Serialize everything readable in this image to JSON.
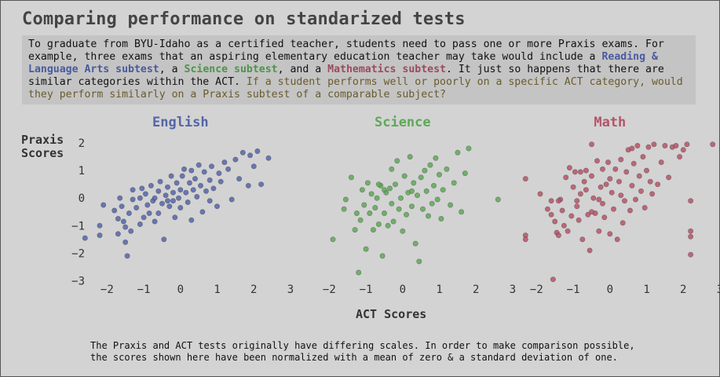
{
  "title": "Comparing performance on standarized tests",
  "intro": {
    "p1": "To graduate from BYU-Idaho as a certified teacher, students need to pass one or more Praxis exams. For example, three exams that an aspiring elementary education teacher may take would include a ",
    "reading": "Reading & Language Arts subtest",
    "p2": ", a ",
    "science": "Science subtest",
    "p3": ", and a ",
    "math": "Mathematics subtest",
    "p4": ". It just so happens that there are similar categories within the ACT. ",
    "question": "If a student performs well or poorly on a specific ACT category, would they perform similarly on a Praxis subtest of a comparable subject?"
  },
  "y_title": [
    "Praxis",
    "Scores"
  ],
  "x_title": "ACT Scores",
  "footnote": "The Praxis and ACT tests originally have differing scales. In order to make comparison possible, the scores shown here have been normalized with a mean of zero & a standard deviation of one.",
  "colors": {
    "English": "#5565a8",
    "Science": "#5ea857",
    "Math": "#b45567"
  },
  "chart_data": {
    "type": "scatter",
    "xlim": [
      -2.5,
      3
    ],
    "ylim": [
      -3.1,
      2.2
    ],
    "x_ticks": [
      -2,
      -1,
      0,
      1,
      2,
      3
    ],
    "y_ticks": [
      2,
      1,
      0,
      -1,
      -2,
      -3
    ],
    "grid": false,
    "panels": [
      {
        "name": "English",
        "points": [
          [
            -2.6,
            -1.45
          ],
          [
            -2.2,
            -1.0
          ],
          [
            -2.2,
            -1.35
          ],
          [
            -2.1,
            -0.25
          ],
          [
            -1.8,
            -0.45
          ],
          [
            -1.7,
            -0.75
          ],
          [
            -1.7,
            -1.3
          ],
          [
            -1.65,
            0.0
          ],
          [
            -1.6,
            -0.3
          ],
          [
            -1.55,
            -0.85
          ],
          [
            -1.5,
            -1.05
          ],
          [
            -1.5,
            -1.6
          ],
          [
            -1.45,
            -2.1
          ],
          [
            -1.4,
            -0.55
          ],
          [
            -1.35,
            -1.2
          ],
          [
            -1.3,
            -0.05
          ],
          [
            -1.3,
            0.3
          ],
          [
            -1.2,
            -0.35
          ],
          [
            -1.1,
            0.0
          ],
          [
            -1.1,
            -0.95
          ],
          [
            -1.05,
            0.35
          ],
          [
            -1.0,
            -0.7
          ],
          [
            -0.95,
            0.15
          ],
          [
            -0.9,
            -0.25
          ],
          [
            -0.85,
            -0.55
          ],
          [
            -0.8,
            0.45
          ],
          [
            -0.75,
            -0.1
          ],
          [
            -0.7,
            0.0
          ],
          [
            -0.7,
            -0.85
          ],
          [
            -0.6,
            -0.55
          ],
          [
            -0.6,
            0.25
          ],
          [
            -0.55,
            0.6
          ],
          [
            -0.5,
            -0.2
          ],
          [
            -0.45,
            -1.5
          ],
          [
            -0.4,
            0.1
          ],
          [
            -0.35,
            0.4
          ],
          [
            -0.3,
            -0.3
          ],
          [
            -0.25,
            0.8
          ],
          [
            -0.2,
            -0.1
          ],
          [
            -0.2,
            0.2
          ],
          [
            -0.15,
            -0.7
          ],
          [
            -0.1,
            0.55
          ],
          [
            -0.05,
            0.0
          ],
          [
            0.0,
            0.3
          ],
          [
            0.0,
            -0.35
          ],
          [
            0.05,
            0.8
          ],
          [
            0.1,
            1.05
          ],
          [
            0.15,
            0.2
          ],
          [
            0.2,
            -0.15
          ],
          [
            0.25,
            0.55
          ],
          [
            0.3,
            1.0
          ],
          [
            0.3,
            -0.8
          ],
          [
            0.35,
            0.3
          ],
          [
            0.4,
            0.7
          ],
          [
            0.45,
            0.05
          ],
          [
            0.5,
            1.2
          ],
          [
            0.55,
            0.45
          ],
          [
            0.6,
            -0.5
          ],
          [
            0.65,
            0.95
          ],
          [
            0.7,
            0.25
          ],
          [
            0.8,
            0.65
          ],
          [
            0.85,
            1.15
          ],
          [
            0.9,
            0.35
          ],
          [
            1.0,
            -0.3
          ],
          [
            1.05,
            0.9
          ],
          [
            1.1,
            0.6
          ],
          [
            1.2,
            1.3
          ],
          [
            1.3,
            1.05
          ],
          [
            1.4,
            -0.05
          ],
          [
            1.5,
            1.4
          ],
          [
            1.6,
            0.7
          ],
          [
            1.7,
            1.65
          ],
          [
            1.85,
            0.45
          ],
          [
            1.9,
            1.55
          ],
          [
            2.0,
            1.15
          ],
          [
            2.1,
            1.7
          ],
          [
            2.2,
            0.5
          ],
          [
            2.4,
            1.45
          ],
          [
            0.8,
            -0.1
          ],
          [
            -0.35,
            -0.1
          ]
        ]
      },
      {
        "name": "Science",
        "points": [
          [
            -1.9,
            -1.5
          ],
          [
            -1.6,
            -0.4
          ],
          [
            -1.55,
            -0.05
          ],
          [
            -1.4,
            0.75
          ],
          [
            -1.3,
            -1.15
          ],
          [
            -1.25,
            -0.55
          ],
          [
            -1.2,
            -2.7
          ],
          [
            -1.15,
            -0.8
          ],
          [
            -1.1,
            0.3
          ],
          [
            -1.05,
            -0.25
          ],
          [
            -1.0,
            -1.85
          ],
          [
            -0.95,
            0.55
          ],
          [
            -0.9,
            -0.55
          ],
          [
            -0.85,
            0.15
          ],
          [
            -0.8,
            -1.15
          ],
          [
            -0.75,
            -0.35
          ],
          [
            -0.7,
            0.0
          ],
          [
            -0.65,
            -0.95
          ],
          [
            -0.6,
            0.45
          ],
          [
            -0.55,
            -2.1
          ],
          [
            -0.5,
            -0.55
          ],
          [
            -0.45,
            0.2
          ],
          [
            -0.4,
            -1.0
          ],
          [
            -0.35,
            0.35
          ],
          [
            -0.3,
            -0.2
          ],
          [
            -0.3,
            1.05
          ],
          [
            -0.25,
            -0.85
          ],
          [
            -0.2,
            0.5
          ],
          [
            -0.15,
            1.35
          ],
          [
            -0.1,
            -0.4
          ],
          [
            -0.05,
            0.0
          ],
          [
            0.0,
            -1.2
          ],
          [
            0.05,
            0.8
          ],
          [
            0.1,
            -0.6
          ],
          [
            0.15,
            0.2
          ],
          [
            0.2,
            1.5
          ],
          [
            0.25,
            -0.3
          ],
          [
            0.3,
            0.55
          ],
          [
            0.35,
            -1.65
          ],
          [
            0.4,
            0.1
          ],
          [
            0.45,
            -2.3
          ],
          [
            0.5,
            0.75
          ],
          [
            0.55,
            -0.4
          ],
          [
            0.6,
            1.0
          ],
          [
            0.65,
            0.25
          ],
          [
            0.7,
            -0.65
          ],
          [
            0.75,
            1.2
          ],
          [
            0.8,
            -0.2
          ],
          [
            0.85,
            0.45
          ],
          [
            0.9,
            1.45
          ],
          [
            0.95,
            -0.05
          ],
          [
            1.0,
            0.85
          ],
          [
            1.05,
            -0.75
          ],
          [
            1.1,
            0.3
          ],
          [
            1.2,
            1.05
          ],
          [
            1.3,
            -0.25
          ],
          [
            1.4,
            0.55
          ],
          [
            1.5,
            1.65
          ],
          [
            1.6,
            -0.5
          ],
          [
            1.7,
            0.9
          ],
          [
            1.8,
            1.8
          ],
          [
            2.6,
            -0.05
          ],
          [
            -0.5,
            0.3
          ],
          [
            -0.65,
            0.5
          ],
          [
            0.25,
            0.25
          ]
        ]
      },
      {
        "name": "Math",
        "points": [
          [
            -2.3,
            0.7
          ],
          [
            -2.3,
            -1.35
          ],
          [
            -2.3,
            -1.5
          ],
          [
            -1.9,
            0.15
          ],
          [
            -1.7,
            -0.4
          ],
          [
            -1.6,
            -0.1
          ],
          [
            -1.6,
            -0.6
          ],
          [
            -1.55,
            -2.95
          ],
          [
            -1.5,
            -0.85
          ],
          [
            -1.45,
            -1.25
          ],
          [
            -1.4,
            -1.35
          ],
          [
            -1.35,
            -0.05
          ],
          [
            -1.3,
            -0.45
          ],
          [
            -1.25,
            -1.0
          ],
          [
            -1.2,
            0.75
          ],
          [
            -1.15,
            -1.2
          ],
          [
            -1.1,
            1.1
          ],
          [
            -1.05,
            -0.65
          ],
          [
            -1.0,
            0.4
          ],
          [
            -0.95,
            0.95
          ],
          [
            -0.9,
            -0.3
          ],
          [
            -0.85,
            -0.8
          ],
          [
            -0.8,
            0.15
          ],
          [
            -0.75,
            -1.5
          ],
          [
            -0.7,
            0.6
          ],
          [
            -0.65,
            1.0
          ],
          [
            -0.6,
            -0.6
          ],
          [
            -0.55,
            -1.9
          ],
          [
            -0.5,
            0.8
          ],
          [
            -0.5,
            1.95
          ],
          [
            -0.45,
            0.0
          ],
          [
            -0.4,
            -0.55
          ],
          [
            -0.35,
            1.35
          ],
          [
            -0.3,
            -0.05
          ],
          [
            -0.3,
            -1.2
          ],
          [
            -0.25,
            0.4
          ],
          [
            -0.2,
            1.05
          ],
          [
            -0.15,
            -0.7
          ],
          [
            -0.1,
            0.5
          ],
          [
            -0.05,
            1.3
          ],
          [
            0.0,
            -1.3
          ],
          [
            0.05,
            0.2
          ],
          [
            0.1,
            -0.4
          ],
          [
            0.15,
            1.05
          ],
          [
            0.2,
            -1.5
          ],
          [
            0.25,
            0.6
          ],
          [
            0.3,
            1.4
          ],
          [
            0.35,
            -0.9
          ],
          [
            0.4,
            -0.1
          ],
          [
            0.45,
            0.95
          ],
          [
            0.5,
            1.75
          ],
          [
            0.55,
            -0.45
          ],
          [
            0.6,
            0.45
          ],
          [
            0.65,
            1.25
          ],
          [
            0.7,
            -0.05
          ],
          [
            0.75,
            1.9
          ],
          [
            0.8,
            0.8
          ],
          [
            0.85,
            0.25
          ],
          [
            0.9,
            1.5
          ],
          [
            0.95,
            -0.35
          ],
          [
            1.0,
            1.0
          ],
          [
            1.05,
            1.85
          ],
          [
            1.1,
            0.6
          ],
          [
            1.15,
            0.15
          ],
          [
            1.2,
            1.95
          ],
          [
            1.3,
            0.5
          ],
          [
            1.4,
            1.3
          ],
          [
            1.5,
            1.9
          ],
          [
            1.6,
            0.75
          ],
          [
            1.7,
            1.85
          ],
          [
            1.8,
            1.9
          ],
          [
            1.9,
            1.5
          ],
          [
            2.0,
            1.75
          ],
          [
            2.1,
            1.95
          ],
          [
            2.2,
            -2.05
          ],
          [
            2.2,
            -1.2
          ],
          [
            2.2,
            -1.4
          ],
          [
            2.2,
            -0.1
          ],
          [
            2.8,
            1.95
          ],
          [
            -0.5,
            -0.5
          ],
          [
            -0.2,
            -0.2
          ],
          [
            0.3,
            0.1
          ],
          [
            -0.65,
            0.3
          ],
          [
            0.0,
            0.7
          ],
          [
            -0.8,
            0.95
          ],
          [
            -1.4,
            -0.1
          ],
          [
            -0.9,
            -0.1
          ],
          [
            0.6,
            1.8
          ]
        ]
      }
    ]
  }
}
